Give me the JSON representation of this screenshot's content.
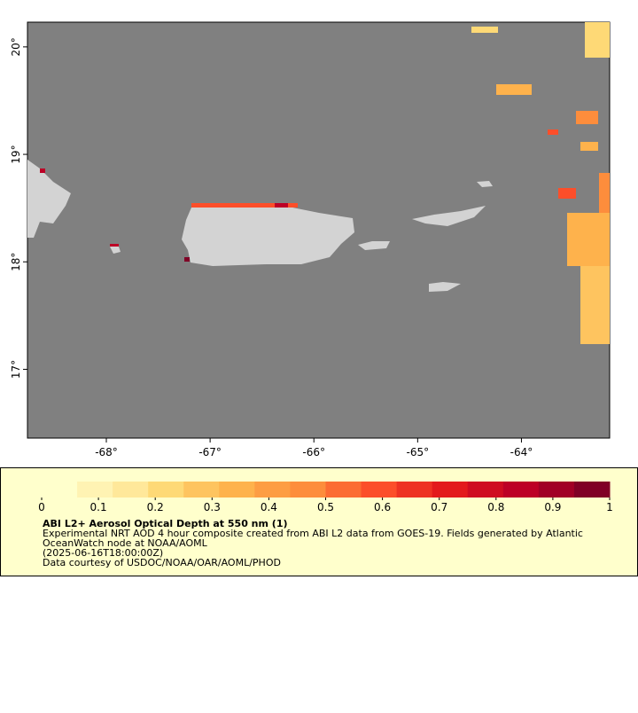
{
  "map": {
    "xlim": [
      -68.76,
      -63.15
    ],
    "ylim": [
      16.36,
      20.23
    ],
    "xticks": [
      {
        "value": -68,
        "label": "-68°"
      },
      {
        "value": -67,
        "label": "-67°"
      },
      {
        "value": -66,
        "label": "-66°"
      },
      {
        "value": -65,
        "label": "-65°"
      },
      {
        "value": -64,
        "label": "-64°"
      }
    ],
    "yticks": [
      {
        "value": 17,
        "label": "17°"
      },
      {
        "value": 18,
        "label": "18°"
      },
      {
        "value": 19,
        "label": "19°"
      },
      {
        "value": 20,
        "label": "20°"
      }
    ]
  },
  "colorbar": {
    "lim": [
      0,
      1
    ],
    "ticks": [
      0,
      0.1,
      0.2,
      0.3,
      0.4,
      0.5,
      0.6,
      0.7,
      0.8,
      0.9,
      1
    ],
    "colors": [
      "#ffffcc",
      "#fff3b3",
      "#ffe89a",
      "#fed976",
      "#fec45f",
      "#feb24c",
      "#fd9d43",
      "#fd8d3c",
      "#fc6c33",
      "#fc4e2a",
      "#ee3223",
      "#e31a1c",
      "#cf0c21",
      "#bd0026",
      "#a10026",
      "#800026"
    ]
  },
  "legend": {
    "title": "ABI L2+ Aerosol Optical Depth at 550 nm (1)",
    "lines": [
      "Experimental NRT AOD 4 hour composite created from ABI L2 data from GOES-19. Fields generated by Atlantic",
      "OceanWatch node at NOAA/AOML",
      "(2025-06-16T18:00:00Z)",
      "Data courtesy of USDOC/NOAA/OAR/AOML/PHOD"
    ]
  }
}
